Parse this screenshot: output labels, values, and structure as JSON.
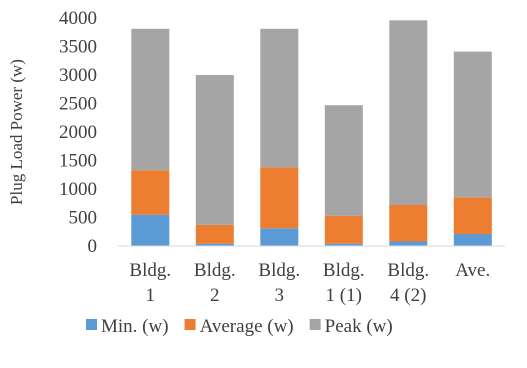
{
  "chart_data": {
    "type": "bar",
    "stacked": true,
    "categories": [
      [
        "Bldg.",
        "1"
      ],
      [
        "Bldg.",
        "2"
      ],
      [
        "Bldg.",
        "3"
      ],
      [
        "Bldg.",
        "1 (1)"
      ],
      [
        "Bldg.",
        "4 (2)"
      ],
      [
        "Ave."
      ]
    ],
    "series": [
      {
        "name": "Min. (w)",
        "color": "#5B9BD5",
        "values": [
          550,
          40,
          310,
          40,
          80,
          210
        ]
      },
      {
        "name": "Average (w)",
        "color": "#ED7D31",
        "values": [
          780,
          330,
          1070,
          490,
          640,
          640
        ]
      },
      {
        "name": "Peak (w)",
        "color": "#A5A5A5",
        "values": [
          2480,
          2630,
          2430,
          1940,
          3240,
          2560
        ]
      }
    ],
    "ylabel": "Plug Load Power (w)",
    "ylim": [
      0,
      4000
    ],
    "yticks": [
      0,
      500,
      1000,
      1500,
      2000,
      2500,
      3000,
      3500,
      4000
    ],
    "grid": false,
    "legend_position": "bottom"
  }
}
